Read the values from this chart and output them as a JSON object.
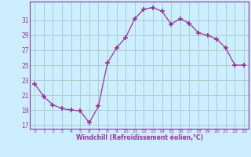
{
  "x": [
    0,
    1,
    2,
    3,
    4,
    5,
    6,
    7,
    8,
    9,
    10,
    11,
    12,
    13,
    14,
    15,
    16,
    17,
    18,
    19,
    20,
    21,
    22,
    23
  ],
  "y": [
    22.5,
    20.8,
    19.7,
    19.2,
    19.0,
    18.9,
    17.3,
    19.5,
    25.3,
    27.3,
    28.7,
    31.2,
    32.5,
    32.7,
    32.2,
    30.5,
    31.2,
    30.6,
    29.3,
    29.0,
    28.5,
    27.3,
    25.0,
    25.0
  ],
  "line_color": "#993399",
  "marker": "+",
  "bg_color": "#cceeff",
  "grid_color": "#aacccc",
  "xlabel": "Windchill (Refroidissement éolien,°C)",
  "xlabel_color": "#993399",
  "tick_color": "#993399",
  "spine_color": "#993399",
  "xlim": [
    -0.5,
    23.5
  ],
  "ylim": [
    16.5,
    33.5
  ],
  "yticks": [
    17,
    19,
    21,
    23,
    25,
    27,
    29,
    31
  ],
  "xticks": [
    0,
    1,
    2,
    3,
    4,
    5,
    6,
    7,
    8,
    9,
    10,
    11,
    12,
    13,
    14,
    15,
    16,
    17,
    18,
    19,
    20,
    21,
    22,
    23
  ]
}
